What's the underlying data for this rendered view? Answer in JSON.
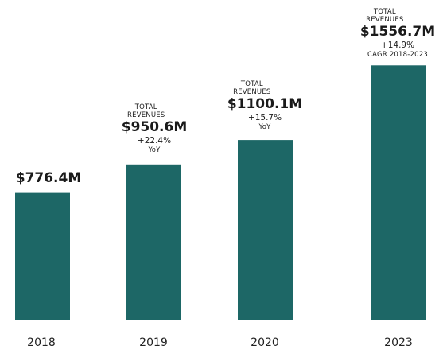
{
  "chart_data": {
    "type": "bar",
    "categories": [
      "2018",
      "2019",
      "2020",
      "2023"
    ],
    "values": [
      776.4,
      950.6,
      1100.1,
      1556.7
    ],
    "value_labels": [
      "$776.4M",
      "$950.6M",
      "$1100.1M",
      "$1556.7M"
    ],
    "annotations": [
      {
        "category": "2018",
        "label_top": "",
        "growth": "",
        "note": ""
      },
      {
        "category": "2019",
        "label_top": "TOTAL REVENUES",
        "growth": "+22.4%",
        "note": "YoY"
      },
      {
        "category": "2020",
        "label_top": "TOTAL REVENUES",
        "growth": "+15.7%",
        "note": "YoY"
      },
      {
        "category": "2023",
        "label_top": "TOTAL REVENUES",
        "growth": "+14.9%",
        "note": "CAGR 2018-2023"
      }
    ],
    "title": "",
    "xlabel": "",
    "ylabel": "",
    "grid": false,
    "legend": "none",
    "bar_color": "#1d6766"
  }
}
